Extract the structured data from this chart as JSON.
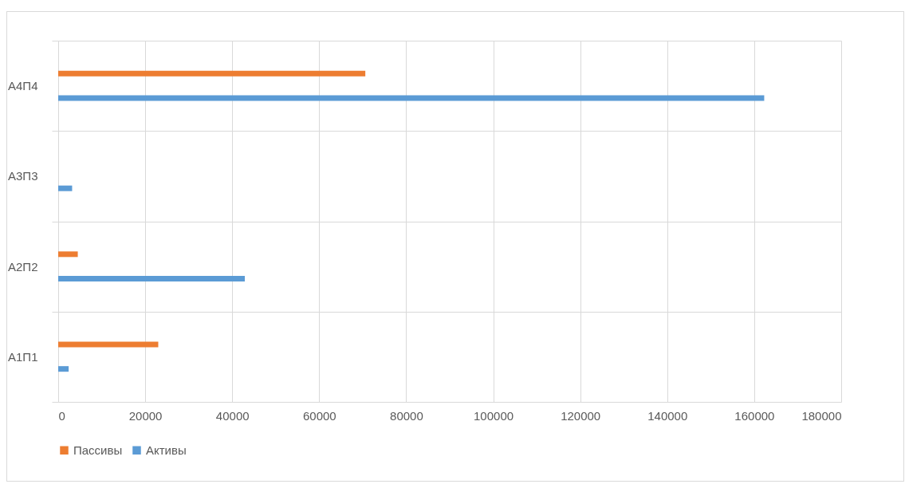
{
  "chart_data": {
    "type": "bar",
    "orientation": "horizontal",
    "categories": [
      "А4П4",
      "А3П3",
      "А2П2",
      "А1П1"
    ],
    "series": [
      {
        "name": "Пассивы",
        "color": "#ed7d31",
        "values": [
          70600,
          0,
          4500,
          23000
        ]
      },
      {
        "name": "Активы",
        "color": "#5b9bd5",
        "values": [
          162300,
          3200,
          42900,
          2400
        ]
      }
    ],
    "xlim": [
      0,
      180000
    ],
    "xticks": [
      0,
      20000,
      40000,
      60000,
      80000,
      100000,
      120000,
      140000,
      160000,
      180000
    ],
    "grid": true,
    "legend": "bottom"
  }
}
